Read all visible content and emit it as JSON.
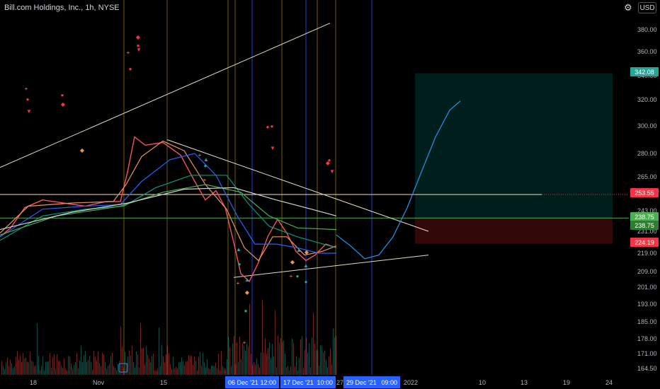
{
  "header": {
    "title": "Bill.com Holdings, Inc., 1h, NYSE",
    "currency": "USD",
    "settings_icon": "gear-icon"
  },
  "chart_data": {
    "type": "line",
    "title": "Bill.com Holdings, Inc., 1h, NYSE",
    "y_ticks": [
      380,
      360,
      340,
      320,
      300,
      280,
      265,
      243,
      231,
      219,
      209,
      201,
      193,
      185,
      178,
      171,
      164.5
    ],
    "y_tick_labels": [
      "380.00",
      "360.00",
      "340.00",
      "320.00",
      "300.00",
      "280.00",
      "265.00",
      "243.00",
      "231.00",
      "219.00",
      "209.00",
      "201.00",
      "193.00",
      "185.00",
      "178.00",
      "171.00",
      "164.50"
    ],
    "ylim": [
      164.5,
      392
    ],
    "price_scale": "log",
    "x_tick_labels": [
      "18",
      "Nov",
      "15",
      "27",
      "2022",
      "10",
      "13",
      "19",
      "24"
    ],
    "x_highlight_labels": [
      "06 Dec '21",
      "12:00",
      "17 Dec '21",
      "10:00",
      "29 Dec '21",
      "09:00"
    ],
    "price_labels": [
      {
        "value": 342.08,
        "label": "342.08",
        "color": "#26a69a"
      },
      {
        "value": 253.55,
        "label": "253.55",
        "color": "#f23645"
      },
      {
        "value": 238.75,
        "label": "238.75",
        "color": "#4caf50"
      },
      {
        "value": 238.75,
        "label": "238.75",
        "color": "#2e7d32"
      },
      {
        "value": 224.19,
        "label": "224.19",
        "color": "#f23645"
      }
    ],
    "horizontal_lines": [
      {
        "value": 253.55,
        "color": "#f5deb3"
      },
      {
        "value": 238.75,
        "color": "#4caf50"
      }
    ],
    "series": [
      {
        "values": [
          [
            0,
            228
          ],
          [
            15,
            233
          ],
          [
            35,
            245
          ],
          [
            60,
            250
          ],
          [
            90,
            248
          ],
          [
            120,
            246
          ],
          [
            150,
            249
          ],
          [
            170,
            249
          ],
          [
            180,
            268
          ],
          [
            190,
            292
          ],
          [
            205,
            286
          ],
          [
            230,
            288
          ],
          [
            255,
            279
          ],
          [
            275,
            262
          ],
          [
            290,
            250
          ],
          [
            305,
            256
          ],
          [
            318,
            245
          ],
          [
            330,
            225
          ],
          [
            340,
            208
          ],
          [
            352,
            204
          ],
          [
            365,
            214
          ],
          [
            378,
            228
          ],
          [
            392,
            238
          ],
          [
            405,
            230
          ],
          [
            418,
            220
          ],
          [
            432,
            215
          ],
          [
            445,
            218
          ],
          [
            460,
            224
          ],
          [
            475,
            222
          ]
        ]
      },
      {
        "values": [
          [
            0,
            230
          ],
          [
            40,
            246
          ],
          [
            100,
            248
          ],
          [
            160,
            249
          ],
          [
            178,
            260
          ],
          [
            200,
            278
          ],
          [
            230,
            289
          ],
          [
            260,
            282
          ],
          [
            290,
            260
          ],
          [
            320,
            244
          ],
          [
            345,
            222
          ],
          [
            365,
            215
          ],
          [
            385,
            228
          ],
          [
            405,
            228
          ],
          [
            430,
            218
          ],
          [
            455,
            220
          ],
          [
            475,
            223
          ]
        ]
      },
      {
        "values": [
          [
            0,
            228
          ],
          [
            60,
            244
          ],
          [
            120,
            246
          ],
          [
            170,
            247
          ],
          [
            200,
            262
          ],
          [
            240,
            276
          ],
          [
            275,
            280
          ],
          [
            305,
            266
          ],
          [
            335,
            240
          ],
          [
            360,
            224
          ],
          [
            390,
            224
          ],
          [
            420,
            222
          ],
          [
            450,
            219
          ],
          [
            475,
            219
          ]
        ]
      },
      {
        "values": [
          [
            0,
            226
          ],
          [
            60,
            240
          ],
          [
            120,
            244
          ],
          [
            175,
            246
          ],
          [
            220,
            258
          ],
          [
            270,
            266
          ],
          [
            320,
            266
          ],
          [
            350,
            248
          ],
          [
            380,
            234
          ],
          [
            420,
            228
          ],
          [
            475,
            222
          ]
        ]
      },
      {
        "values": [
          [
            0,
            229
          ],
          [
            80,
            240
          ],
          [
            170,
            246
          ],
          [
            230,
            255
          ],
          [
            290,
            260
          ],
          [
            340,
            255
          ],
          [
            380,
            240
          ],
          [
            420,
            233
          ],
          [
            475,
            232
          ]
        ]
      },
      {
        "values": [
          [
            0,
            232
          ],
          [
            100,
            242
          ],
          [
            180,
            248
          ],
          [
            260,
            257
          ],
          [
            330,
            258
          ],
          [
            390,
            250
          ],
          [
            440,
            244
          ],
          [
            475,
            240
          ]
        ]
      },
      {
        "values": [
          [
            475,
            229
          ],
          [
            495,
            223
          ],
          [
            515,
            216
          ],
          [
            535,
            218
          ],
          [
            555,
            228
          ],
          [
            575,
            245
          ],
          [
            595,
            268
          ],
          [
            615,
            292
          ],
          [
            635,
            312
          ],
          [
            650,
            319
          ]
        ]
      }
    ],
    "trendlines": [
      {
        "from": [
          0,
          271
        ],
        "to": [
          466,
          386
        ]
      },
      {
        "from": [
          330,
          206
        ],
        "to": [
          605,
          218
        ]
      },
      {
        "from": [
          236,
          290
        ],
        "to": [
          605,
          231
        ]
      }
    ],
    "zones": [
      {
        "from_x": 586,
        "to_x": 865,
        "top": 342.08,
        "bottom": 238.75,
        "kind": "target"
      },
      {
        "from_x": 586,
        "to_x": 865,
        "top": 238.75,
        "bottom": 224.19,
        "kind": "stop"
      }
    ],
    "grid": false,
    "legend": "none"
  }
}
